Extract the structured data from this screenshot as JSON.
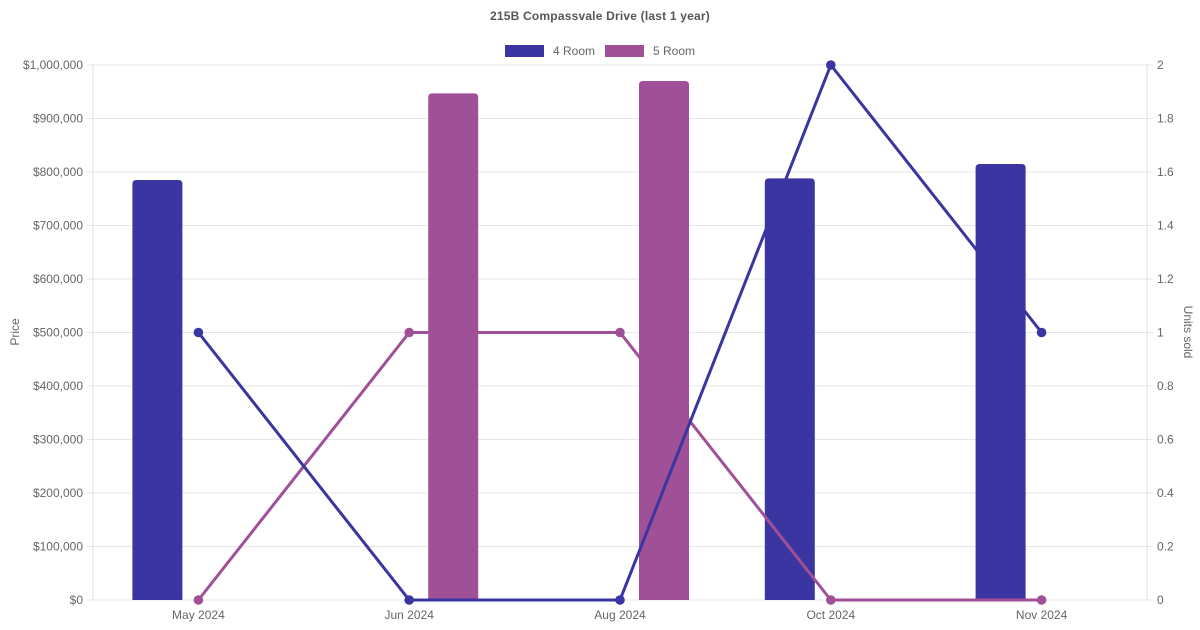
{
  "title": "215B Compassvale Drive (last 1 year)",
  "legend": {
    "items": [
      {
        "label": "4 Room",
        "color": "#3a35a1"
      },
      {
        "label": "5 Room",
        "color": "#a05097"
      }
    ]
  },
  "colors": {
    "background": "#ffffff",
    "grid": "#e6e6e6",
    "axis_line": "#e0e0e0",
    "tick_text": "#666666",
    "title_text": "#565656",
    "series_4_room": "#3a35a1",
    "series_5_room": "#a05097"
  },
  "chart_data": {
    "type": "bar",
    "subtype": "grouped bars (price, left axis) + lines with point markers (units sold, right axis)",
    "title": "215B Compassvale Drive (last 1 year)",
    "categories": [
      "May 2024",
      "Jun 2024",
      "Aug 2024",
      "Oct 2024",
      "Nov 2024"
    ],
    "series": [
      {
        "name": "4 Room",
        "type": "bar",
        "axis": "left",
        "color": "#3a35a1",
        "values": [
          785000,
          null,
          null,
          788000,
          815000
        ]
      },
      {
        "name": "5 Room",
        "type": "bar",
        "axis": "left",
        "color": "#a05097",
        "values": [
          null,
          947000,
          970000,
          null,
          null
        ]
      },
      {
        "name": "4 Room",
        "type": "line",
        "axis": "right",
        "color": "#3a35a1",
        "values": [
          1,
          0,
          0,
          2,
          1
        ]
      },
      {
        "name": "5 Room",
        "type": "line",
        "axis": "right",
        "color": "#a05097",
        "values": [
          0,
          1,
          1,
          0,
          0
        ]
      }
    ],
    "left_axis": {
      "label": "Price",
      "min": 0,
      "max": 1000000,
      "tick_labels": [
        "$0",
        "$100,000",
        "$200,000",
        "$300,000",
        "$400,000",
        "$500,000",
        "$600,000",
        "$700,000",
        "$800,000",
        "$900,000",
        "$1,000,000"
      ]
    },
    "right_axis": {
      "label": "Units sold",
      "min": 0,
      "max": 2,
      "tick_labels": [
        "0",
        "0.2",
        "0.4",
        "0.6",
        "0.8",
        "1",
        "1.2",
        "1.4",
        "1.6",
        "1.8",
        "2"
      ]
    },
    "grid": true,
    "legend_position": "top"
  }
}
